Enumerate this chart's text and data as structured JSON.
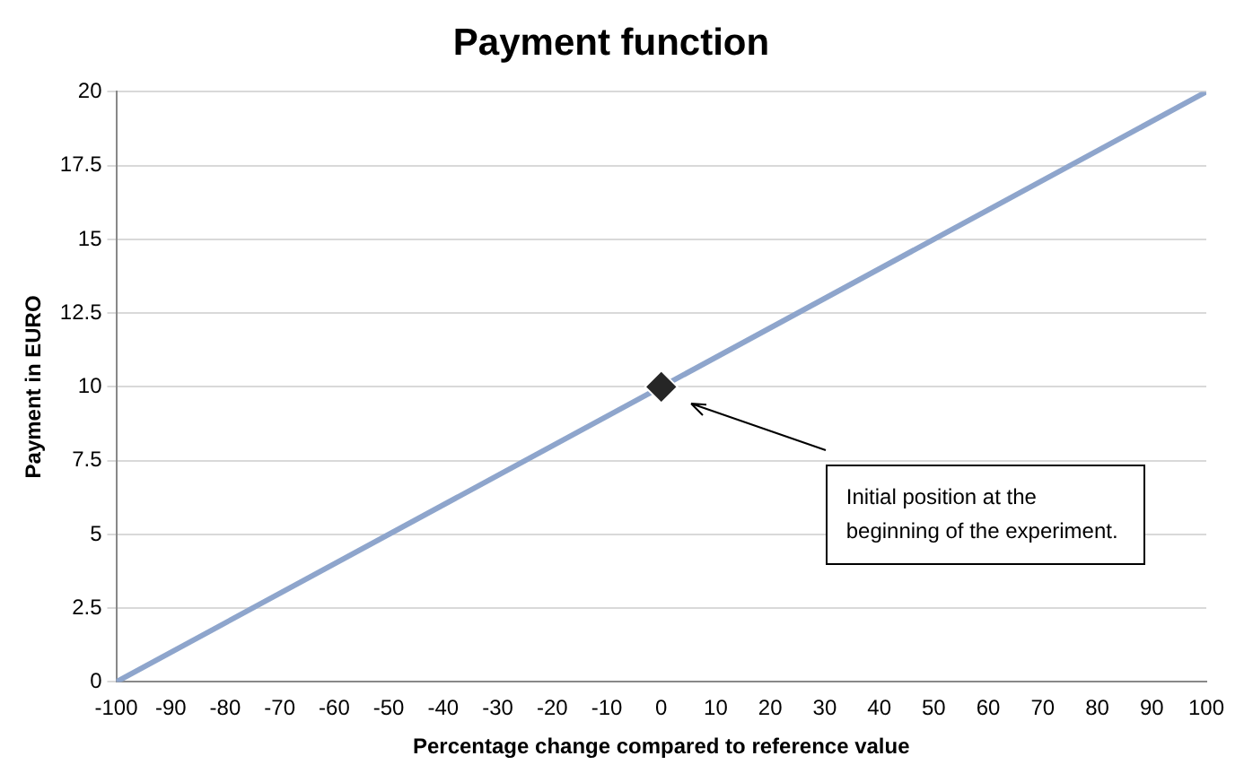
{
  "chart_data": {
    "type": "line",
    "title": "Payment function",
    "xlabel": "Percentage change compared to reference value",
    "ylabel": "Payment in EURO",
    "x": [
      -100,
      100
    ],
    "marker": "none",
    "series": [
      {
        "color": "#8ea5cc",
        "values": [
          0,
          20
        ]
      },
      {
        "type": "scatter",
        "x": [
          0
        ],
        "values": [
          10
        ],
        "color": "#262626",
        "marker": "diamond"
      }
    ],
    "xlim": [
      -100,
      100
    ],
    "xticks": [
      -100,
      -90,
      -80,
      -70,
      -60,
      -50,
      -40,
      -30,
      -20,
      -10,
      0,
      10,
      20,
      30,
      40,
      50,
      60,
      70,
      80,
      90,
      100
    ],
    "ylim": [
      0,
      20
    ],
    "yticks": [
      0,
      2.5,
      5,
      7.5,
      10,
      12.5,
      15,
      17.5,
      20
    ],
    "grid": "y",
    "annotations": [
      "Initial position at the beginning of the experiment."
    ]
  }
}
